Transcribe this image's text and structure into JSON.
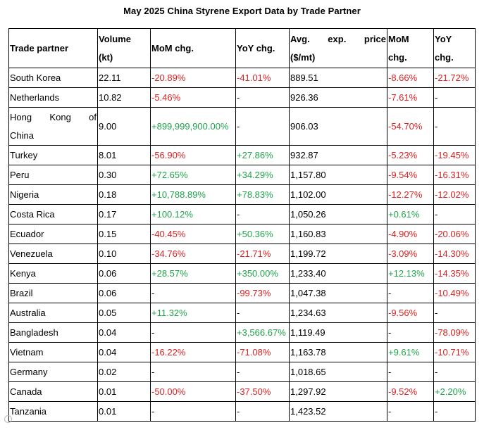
{
  "title": "May 2025 China Styrene Export Data by Trade Partner",
  "headers": {
    "partner": "Trade partner",
    "volume_line1": "Volume",
    "volume_line2": "(kt)",
    "mom": "MoM chg.",
    "yoy": "YoY chg.",
    "price_line1": "Avg.    exp.    price",
    "price_line2": "($/mt)",
    "price_mom_line1": "MoM",
    "price_mom_line2": "chg.",
    "price_yoy_line1": "YoY",
    "price_yoy_line2": "chg."
  },
  "colors": {
    "negative": "#e02020",
    "positive": "#1fa34a"
  },
  "rows": [
    {
      "partner": "South Korea",
      "volume": "22.11",
      "mom": "-20.89%",
      "yoy": "-41.01%",
      "price": "889.51",
      "price_mom": "-8.66%",
      "price_yoy": "-21.72%"
    },
    {
      "partner": "Netherlands",
      "volume": "10.82",
      "mom": "-5.46%",
      "yoy": "-",
      "price": "926.36",
      "price_mom": "-7.61%",
      "price_yoy": "-"
    },
    {
      "partner": "Hong Kong of China",
      "partner_line1": "Hong    Kong    of",
      "partner_line2": "China",
      "volume": "9.00",
      "mom": "+899,999,900.00%",
      "yoy": "-",
      "price": "906.03",
      "price_mom": "-54.70%",
      "price_yoy": "-"
    },
    {
      "partner": "Turkey",
      "volume": "8.01",
      "mom": "-56.90%",
      "yoy": "+27.86%",
      "price": "932.87",
      "price_mom": "-5.23%",
      "price_yoy": "-19.45%"
    },
    {
      "partner": "Peru",
      "volume": "0.30",
      "mom": "+72.65%",
      "yoy": "+34.29%",
      "price": "1,157.80",
      "price_mom": "-9.54%",
      "price_yoy": "-16.31%"
    },
    {
      "partner": "Nigeria",
      "volume": "0.18",
      "mom": "+10,788.89%",
      "yoy": "+78.83%",
      "price": "1,102.00",
      "price_mom": "-12.27%",
      "price_yoy": "-12.02%"
    },
    {
      "partner": "Costa Rica",
      "volume": "0.17",
      "mom": "+100.12%",
      "yoy": "-",
      "price": "1,050.26",
      "price_mom": "+0.61%",
      "price_yoy": "-"
    },
    {
      "partner": "Ecuador",
      "volume": "0.15",
      "mom": "-40.45%",
      "yoy": "+50.36%",
      "price": "1,160.83",
      "price_mom": "-4.90%",
      "price_yoy": "-20.06%"
    },
    {
      "partner": "Venezuela",
      "volume": "0.10",
      "mom": "-34.76%",
      "yoy": "-21.71%",
      "price": "1,199.72",
      "price_mom": "-3.09%",
      "price_yoy": "-14.30%"
    },
    {
      "partner": "Kenya",
      "volume": "0.06",
      "mom": "+28.57%",
      "yoy": "+350.00%",
      "price": "1,233.40",
      "price_mom": "+12.13%",
      "price_yoy": "-14.35%"
    },
    {
      "partner": "Brazil",
      "volume": "0.06",
      "mom": "-",
      "yoy": "-99.73%",
      "price": "1,047.38",
      "price_mom": "-",
      "price_yoy": "-10.49%"
    },
    {
      "partner": "Australia",
      "volume": "0.05",
      "mom": "+11.32%",
      "yoy": "-",
      "price": "1,234.63",
      "price_mom": "-9.56%",
      "price_yoy": "-"
    },
    {
      "partner": "Bangladesh",
      "volume": "0.04",
      "mom": "-",
      "yoy": "+3,566.67%",
      "price": "1,119.49",
      "price_mom": "-",
      "price_yoy": "-78.09%"
    },
    {
      "partner": "Vietnam",
      "volume": "0.04",
      "mom": "-16.22%",
      "yoy": "-71.08%",
      "price": "1,163.78",
      "price_mom": "+9.61%",
      "price_yoy": "-10.71%"
    },
    {
      "partner": "Germany",
      "volume": "0.02",
      "mom": "-",
      "yoy": "-",
      "price": "1,018.65",
      "price_mom": "-",
      "price_yoy": "-"
    },
    {
      "partner": "Canada",
      "volume": "0.01",
      "mom": "-50.00%",
      "yoy": "-37.50%",
      "price": "1,297.92",
      "price_mom": "-9.52%",
      "price_yoy": "+2.20%"
    },
    {
      "partner": "Tanzania",
      "volume": "0.01",
      "mom": "-",
      "yoy": "-",
      "price": "1,423.52",
      "price_mom": "-",
      "price_yoy": "-"
    }
  ]
}
